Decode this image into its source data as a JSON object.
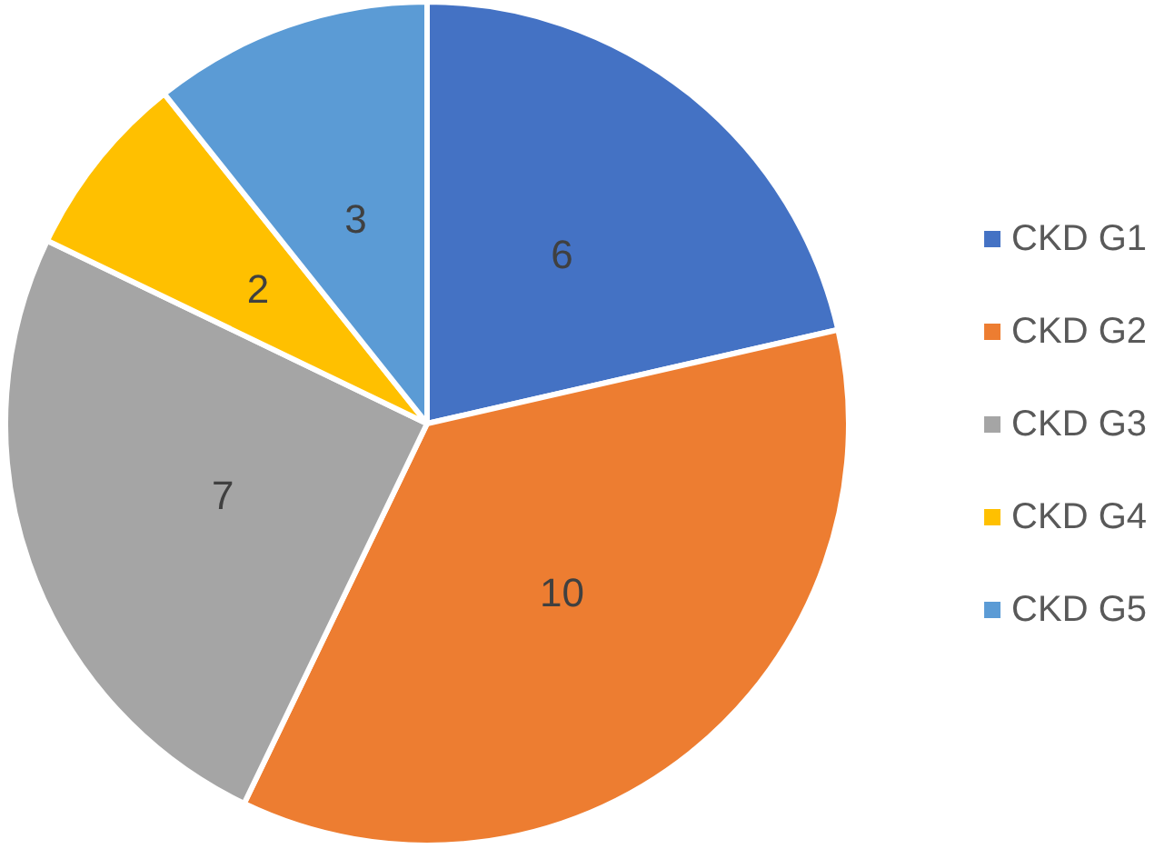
{
  "chart_data": {
    "type": "pie",
    "categories": [
      "CKD G1",
      "CKD G2",
      "CKD G3",
      "CKD G4",
      "CKD G5"
    ],
    "values": [
      6,
      10,
      7,
      2,
      3
    ],
    "colors": [
      "#4472c4",
      "#ed7d31",
      "#a5a5a5",
      "#ffc000",
      "#5b9bd5"
    ],
    "data_labels": true,
    "legend": "right"
  }
}
